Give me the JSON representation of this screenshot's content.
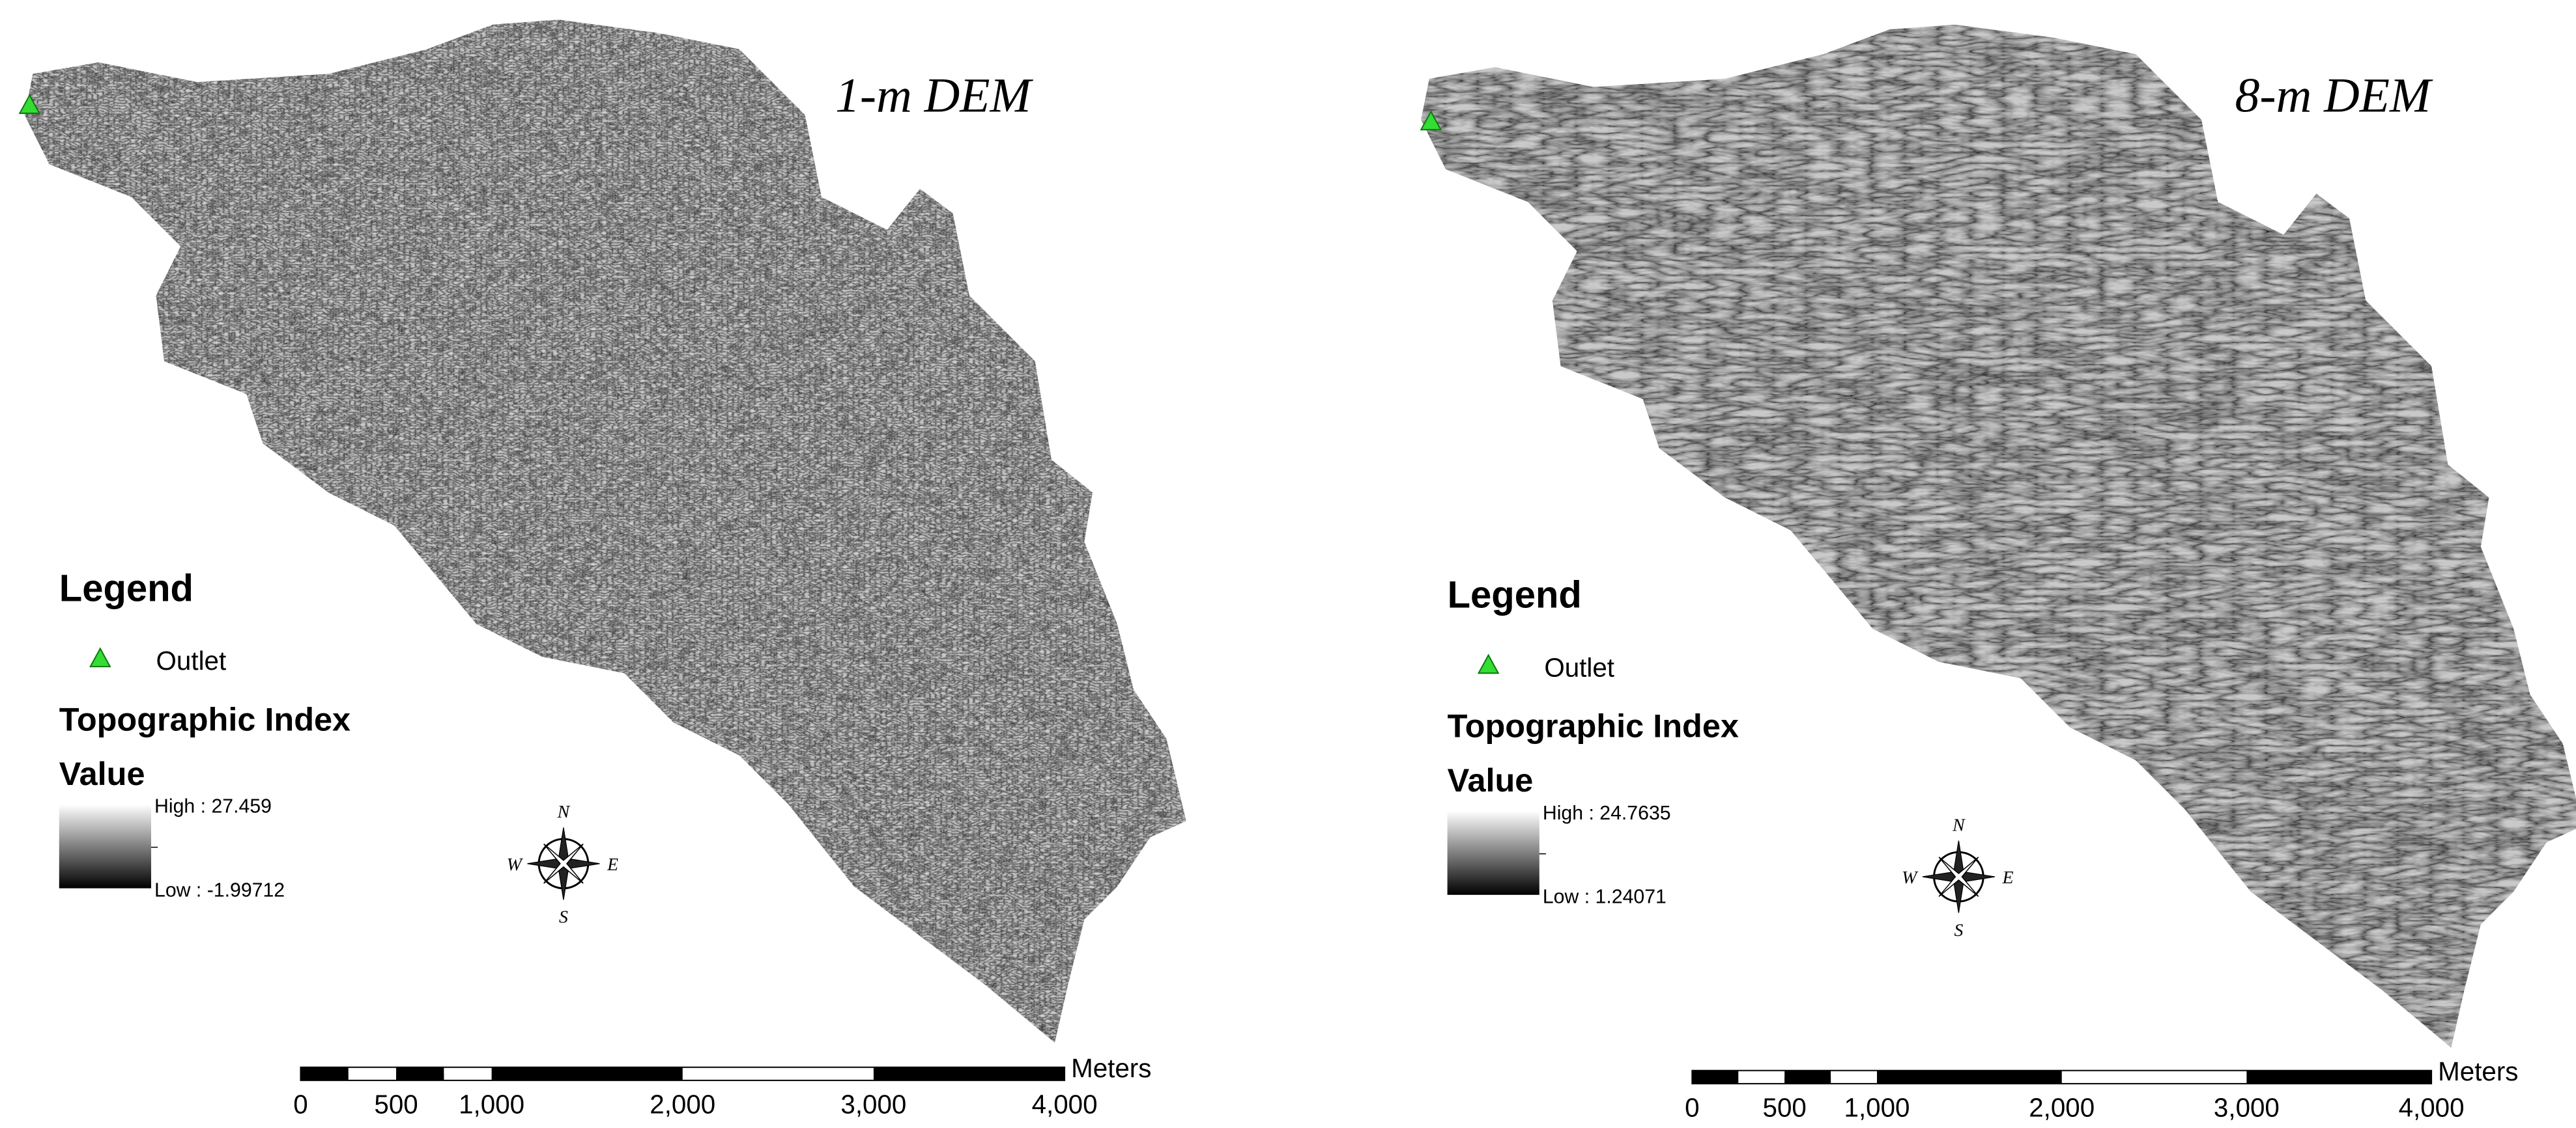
{
  "panels": [
    {
      "title": "1-m DEM",
      "legend": {
        "title": "Legend",
        "outlet": "Outlet",
        "layer": "Topographic Index",
        "field": "Value",
        "high": "High : 27.459",
        "low": "Low : -1.99712"
      },
      "compass": {
        "n": "N",
        "e": "E",
        "s": "S",
        "w": "W"
      },
      "scale_bar": {
        "labels": [
          "0",
          "500",
          "1,000",
          "2,000",
          "3,000",
          "4,000"
        ],
        "unit": "Meters"
      }
    },
    {
      "title": "8-m DEM",
      "legend": {
        "title": "Legend",
        "outlet": "Outlet",
        "layer": "Topographic Index",
        "field": "Value",
        "high": "High : 24.7635",
        "low": "Low : 1.24071"
      },
      "compass": {
        "n": "N",
        "e": "E",
        "s": "S",
        "w": "W"
      },
      "scale_bar": {
        "labels": [
          "0",
          "500",
          "1,000",
          "2,000",
          "3,000",
          "4,000"
        ],
        "unit": "Meters"
      }
    }
  ]
}
